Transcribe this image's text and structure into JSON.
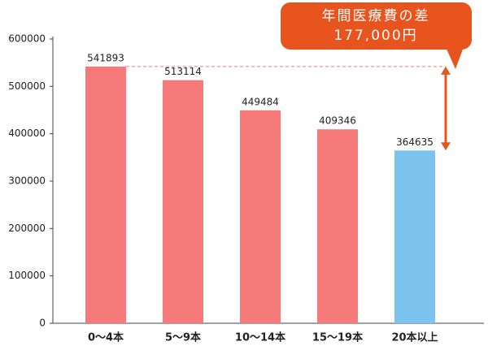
{
  "chart_data": {
    "type": "bar",
    "categories": [
      "0～4本",
      "5～9本",
      "10～14本",
      "15～19本",
      "20本以上"
    ],
    "values": [
      541893,
      513114,
      449484,
      409346,
      364635
    ],
    "colors": [
      "#f77a7a",
      "#f77a7a",
      "#f77a7a",
      "#f77a7a",
      "#7dc3ef"
    ],
    "ylim": [
      0,
      600000
    ],
    "yticks": [
      0,
      100000,
      200000,
      300000,
      400000,
      500000,
      600000
    ],
    "annotation": [
      "年間医療費の差",
      "177,000円"
    ],
    "annotation_color": "#e8541e"
  }
}
